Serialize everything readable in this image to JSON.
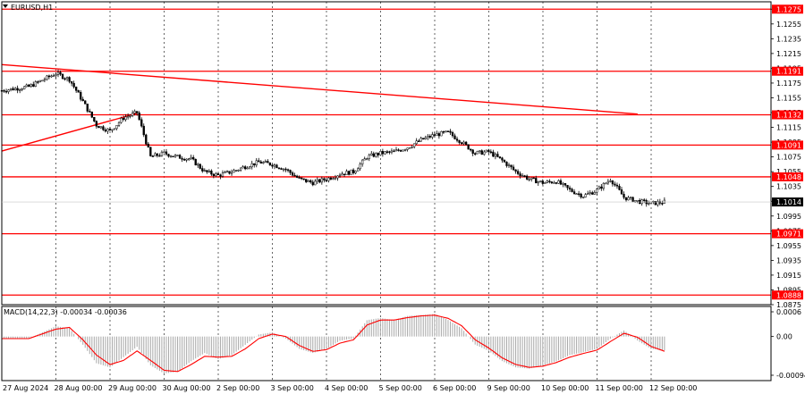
{
  "chart_data": [
    {
      "type": "candlestick",
      "title": "EURUSD,H1",
      "x_labels": [
        "27 Aug 2024",
        "28 Aug 00:00",
        "29 Aug 00:00",
        "30 Aug 00:00",
        "2 Sep 00:00",
        "3 Sep 00:00",
        "4 Sep 00:00",
        "5 Sep 00:00",
        "6 Sep 00:00",
        "9 Sep 00:00",
        "10 Sep 00:00",
        "11 Sep 00:00",
        "12 Sep 00:00"
      ],
      "y_ticks": [
        "1.1275",
        "1.1255",
        "1.1235",
        "1.1215",
        "1.1195",
        "1.1175",
        "1.1155",
        "1.1135",
        "1.1115",
        "1.1095",
        "1.1075",
        "1.1055",
        "1.1035",
        "1.1015",
        "1.0995",
        "1.0975",
        "1.0955",
        "1.0935",
        "1.0915",
        "1.0895",
        "1.0875"
      ],
      "ylim": [
        1.0875,
        1.1285
      ],
      "current_price": "1.1014",
      "levels": [
        {
          "label": "1.1275",
          "value": 1.1275
        },
        {
          "label": "1.1191",
          "value": 1.1191
        },
        {
          "label": "1.1132",
          "value": 1.1132
        },
        {
          "label": "1.1091",
          "value": 1.1091
        },
        {
          "label": "1.1048",
          "value": 1.1048
        },
        {
          "label": "1.0971",
          "value": 1.0971
        },
        {
          "label": "1.0888",
          "value": 1.0888
        }
      ],
      "trendlines": [
        {
          "from": [
            "27 Aug 2024",
            1.12
          ],
          "to": [
            "11 Sep 18:00",
            1.1133
          ]
        },
        {
          "from": [
            "27 Aug 2024",
            1.1083
          ],
          "to": [
            "29 Aug 12:00",
            1.1134
          ]
        }
      ],
      "close_path": [
        [
          "27 Aug 00:00",
          1.1165
        ],
        [
          "27 Aug 12:00",
          1.117
        ],
        [
          "28 Aug 00:00",
          1.1188
        ],
        [
          "28 Aug 06:00",
          1.118
        ],
        [
          "28 Aug 12:00",
          1.115
        ],
        [
          "28 Aug 18:00",
          1.1118
        ],
        [
          "29 Aug 00:00",
          1.111
        ],
        [
          "29 Aug 06:00",
          1.1128
        ],
        [
          "29 Aug 12:00",
          1.1135
        ],
        [
          "29 Aug 18:00",
          1.1075
        ],
        [
          "30 Aug 00:00",
          1.108
        ],
        [
          "30 Aug 06:00",
          1.1075
        ],
        [
          "30 Aug 12:00",
          1.1072
        ],
        [
          "30 Aug 18:00",
          1.1055
        ],
        [
          "2 Sep 00:00",
          1.105
        ],
        [
          "2 Sep 06:00",
          1.1055
        ],
        [
          "2 Sep 12:00",
          1.1062
        ],
        [
          "2 Sep 18:00",
          1.1068
        ],
        [
          "3 Sep 00:00",
          1.1065
        ],
        [
          "3 Sep 06:00",
          1.1058
        ],
        [
          "3 Sep 12:00",
          1.1045
        ],
        [
          "3 Sep 18:00",
          1.104
        ],
        [
          "4 Sep 00:00",
          1.1045
        ],
        [
          "4 Sep 06:00",
          1.1052
        ],
        [
          "4 Sep 12:00",
          1.1055
        ],
        [
          "4 Sep 18:00",
          1.1075
        ],
        [
          "5 Sep 00:00",
          1.108
        ],
        [
          "5 Sep 06:00",
          1.1082
        ],
        [
          "5 Sep 12:00",
          1.1088
        ],
        [
          "5 Sep 18:00",
          1.1098
        ],
        [
          "6 Sep 00:00",
          1.1105
        ],
        [
          "6 Sep 06:00",
          1.1108
        ],
        [
          "6 Sep 12:00",
          1.1095
        ],
        [
          "6 Sep 18:00",
          1.108
        ],
        [
          "9 Sep 00:00",
          1.1082
        ],
        [
          "9 Sep 06:00",
          1.107
        ],
        [
          "9 Sep 12:00",
          1.1055
        ],
        [
          "9 Sep 18:00",
          1.1045
        ],
        [
          "10 Sep 00:00",
          1.104
        ],
        [
          "10 Sep 06:00",
          1.1042
        ],
        [
          "10 Sep 12:00",
          1.103
        ],
        [
          "10 Sep 18:00",
          1.1022
        ],
        [
          "11 Sep 00:00",
          1.103
        ],
        [
          "11 Sep 06:00",
          1.1045
        ],
        [
          "11 Sep 12:00",
          1.102
        ],
        [
          "11 Sep 18:00",
          1.1015
        ],
        [
          "12 Sep 00:00",
          1.1012
        ],
        [
          "12 Sep 06:00",
          1.1014
        ]
      ]
    },
    {
      "type": "bar",
      "title": "MACD(14,22,3) -0.00034 -0.00036",
      "y_ticks": [
        "0.0006",
        "0.00",
        "-0.00094"
      ],
      "ylim": [
        -0.00094,
        0.0006
      ],
      "histogram_path": [
        [
          "27 Aug 00:00",
          -5e-05
        ],
        [
          "27 Aug 12:00",
          -5e-05
        ],
        [
          "28 Aug 00:00",
          0.00025
        ],
        [
          "28 Aug 06:00",
          0.0002
        ],
        [
          "28 Aug 12:00",
          -0.0002
        ],
        [
          "28 Aug 18:00",
          -0.00065
        ],
        [
          "29 Aug 00:00",
          -0.00075
        ],
        [
          "29 Aug 06:00",
          -0.0005
        ],
        [
          "29 Aug 12:00",
          -0.00025
        ],
        [
          "29 Aug 18:00",
          -0.0007
        ],
        [
          "30 Aug 00:00",
          -0.0009
        ],
        [
          "30 Aug 06:00",
          -0.00085
        ],
        [
          "30 Aug 12:00",
          -0.0006
        ],
        [
          "30 Aug 18:00",
          -0.0004
        ],
        [
          "2 Sep 00:00",
          -0.00055
        ],
        [
          "2 Sep 06:00",
          -0.00045
        ],
        [
          "2 Sep 12:00",
          -0.0002
        ],
        [
          "2 Sep 18:00",
          5e-05
        ],
        [
          "3 Sep 00:00",
          0.0001
        ],
        [
          "3 Sep 06:00",
          -5e-05
        ],
        [
          "3 Sep 12:00",
          -0.0003
        ],
        [
          "3 Sep 18:00",
          -0.0004
        ],
        [
          "4 Sep 00:00",
          -0.0003
        ],
        [
          "4 Sep 06:00",
          -0.0001
        ],
        [
          "4 Sep 12:00",
          -5e-05
        ],
        [
          "4 Sep 18:00",
          0.0004
        ],
        [
          "5 Sep 00:00",
          0.00045
        ],
        [
          "5 Sep 06:00",
          0.0004
        ],
        [
          "5 Sep 12:00",
          0.0005
        ],
        [
          "5 Sep 18:00",
          0.00052
        ],
        [
          "6 Sep 00:00",
          0.00055
        ],
        [
          "6 Sep 06:00",
          0.0004
        ],
        [
          "6 Sep 12:00",
          0.0002
        ],
        [
          "6 Sep 18:00",
          -0.0002
        ],
        [
          "9 Sep 00:00",
          -0.00035
        ],
        [
          "9 Sep 06:00",
          -0.0006
        ],
        [
          "9 Sep 12:00",
          -0.00075
        ],
        [
          "9 Sep 18:00",
          -0.00078
        ],
        [
          "10 Sep 00:00",
          -0.0007
        ],
        [
          "10 Sep 06:00",
          -0.0006
        ],
        [
          "10 Sep 12:00",
          -0.00045
        ],
        [
          "10 Sep 18:00",
          -0.00038
        ],
        [
          "11 Sep 00:00",
          -0.0003
        ],
        [
          "11 Sep 06:00",
          -5e-05
        ],
        [
          "11 Sep 12:00",
          0.00015
        ],
        [
          "11 Sep 18:00",
          -0.0001
        ],
        [
          "12 Sep 00:00",
          -0.0003
        ],
        [
          "12 Sep 06:00",
          -0.00034
        ]
      ],
      "signal_path": [
        [
          "27 Aug 00:00",
          -5e-05
        ],
        [
          "27 Aug 12:00",
          -5e-05
        ],
        [
          "28 Aug 00:00",
          0.00018
        ],
        [
          "28 Aug 06:00",
          0.00022
        ],
        [
          "28 Aug 12:00",
          -8e-05
        ],
        [
          "28 Aug 18:00",
          -0.00045
        ],
        [
          "29 Aug 00:00",
          -0.00068
        ],
        [
          "29 Aug 06:00",
          -0.00058
        ],
        [
          "29 Aug 12:00",
          -0.00035
        ],
        [
          "29 Aug 18:00",
          -0.00058
        ],
        [
          "30 Aug 00:00",
          -0.00082
        ],
        [
          "30 Aug 06:00",
          -0.00085
        ],
        [
          "30 Aug 12:00",
          -0.00068
        ],
        [
          "30 Aug 18:00",
          -0.00048
        ],
        [
          "2 Sep 00:00",
          -0.0005
        ],
        [
          "2 Sep 06:00",
          -0.00048
        ],
        [
          "2 Sep 12:00",
          -0.0003
        ],
        [
          "2 Sep 18:00",
          -5e-05
        ],
        [
          "3 Sep 00:00",
          6e-05
        ],
        [
          "3 Sep 06:00",
          0.0
        ],
        [
          "3 Sep 12:00",
          -0.00022
        ],
        [
          "3 Sep 18:00",
          -0.00036
        ],
        [
          "4 Sep 00:00",
          -0.00032
        ],
        [
          "4 Sep 06:00",
          -0.00016
        ],
        [
          "4 Sep 12:00",
          -8e-05
        ],
        [
          "4 Sep 18:00",
          0.00028
        ],
        [
          "5 Sep 00:00",
          0.0004
        ],
        [
          "5 Sep 06:00",
          0.0004
        ],
        [
          "5 Sep 12:00",
          0.00046
        ],
        [
          "5 Sep 18:00",
          0.0005
        ],
        [
          "6 Sep 00:00",
          0.00052
        ],
        [
          "6 Sep 06:00",
          0.00044
        ],
        [
          "6 Sep 12:00",
          0.00026
        ],
        [
          "6 Sep 18:00",
          -8e-05
        ],
        [
          "9 Sep 00:00",
          -0.00028
        ],
        [
          "9 Sep 06:00",
          -0.00052
        ],
        [
          "9 Sep 12:00",
          -0.00068
        ],
        [
          "9 Sep 18:00",
          -0.00075
        ],
        [
          "10 Sep 00:00",
          -0.00072
        ],
        [
          "10 Sep 06:00",
          -0.00063
        ],
        [
          "10 Sep 12:00",
          -0.0005
        ],
        [
          "10 Sep 18:00",
          -0.00041
        ],
        [
          "11 Sep 00:00",
          -0.00033
        ],
        [
          "11 Sep 06:00",
          -0.00012
        ],
        [
          "11 Sep 12:00",
          8e-05
        ],
        [
          "11 Sep 18:00",
          -2e-05
        ],
        [
          "12 Sep 00:00",
          -0.00024
        ],
        [
          "12 Sep 06:00",
          -0.00036
        ]
      ]
    }
  ],
  "colors": {
    "level_line": "#ff0000",
    "candles": "#000000",
    "macd_histogram": "#a8a8a8",
    "macd_signal": "#ff0000",
    "tag_background": "#ff0000",
    "grid": "#000000"
  }
}
